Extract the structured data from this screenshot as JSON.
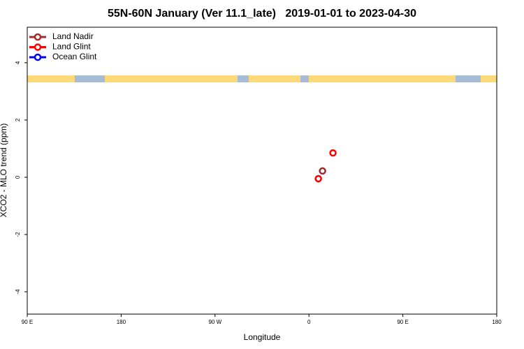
{
  "chart_data": {
    "type": "scatter",
    "title": "55N-60N January (Ver 11.1_late)   2019-01-01 to 2023-04-30",
    "x_label": "Longitude",
    "y_label": "XCO2 - MLO trend (ppm)",
    "xlim": [
      90,
      540
    ],
    "ylim": [
      -4.78,
      5.24
    ],
    "xticks": [
      {
        "value": 90,
        "label": "90 E"
      },
      180,
      {
        "value": 270,
        "label": "90 W"
      },
      {
        "value": 360,
        "label": "0"
      },
      {
        "value": 450,
        "label": "90 E"
      },
      {
        "value": 540,
        "label": "180"
      }
    ],
    "yticks": [
      4,
      2,
      0,
      -2,
      -4
    ],
    "legend": "upper left",
    "series": [
      {
        "name": "Land Nadir",
        "color": "#a52a2a",
        "x": [
          373
        ],
        "values": [
          0.22
        ]
      },
      {
        "name": "Land Glint",
        "color": "#ff0000",
        "x": [
          369,
          383
        ],
        "values": [
          -0.05,
          0.85
        ]
      },
      {
        "name": "Ocean Glint",
        "color": "#0000ff",
        "x": [],
        "values": []
      }
    ]
  }
}
